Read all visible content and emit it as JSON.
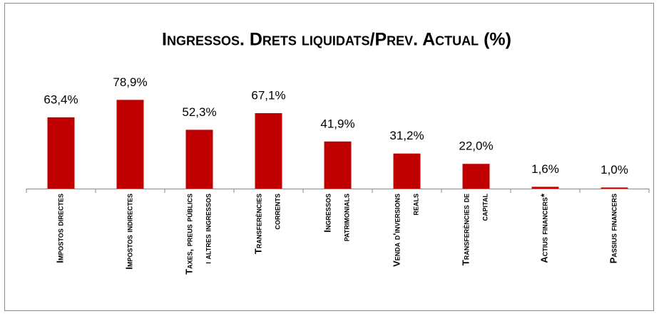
{
  "chart_data": {
    "type": "bar",
    "title": "Ingressos. Drets liquidats/Prev. Actual (%)",
    "categories": [
      "Impostos directes",
      "Impostos indirectes",
      "Taxes, preus públics i altres ingressos",
      "Transferències corrents",
      "Ingressos patrimonials",
      "Venda d'inversions reals",
      "Transferències de capital",
      "Actius financers*",
      "Passius financers"
    ],
    "values": [
      63.4,
      78.9,
      52.3,
      67.1,
      41.9,
      31.2,
      22.0,
      1.6,
      1.0
    ],
    "value_labels": [
      "63,4%",
      "78,9%",
      "52,3%",
      "67,1%",
      "41,9%",
      "31,2%",
      "22,0%",
      "1,6%",
      "1,0%"
    ],
    "color": "#c00000",
    "ylim": [
      0,
      100
    ]
  }
}
